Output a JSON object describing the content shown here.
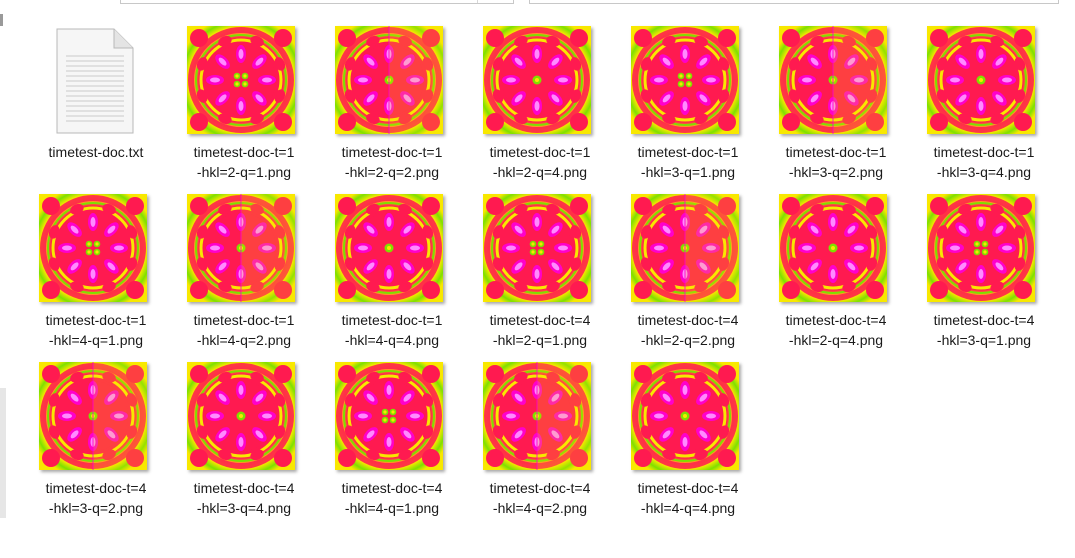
{
  "files": [
    {
      "name": "timetest-doc.txt",
      "type": "text"
    },
    {
      "name": "timetest-doc-t=1\n-hkl=2-q=1.png",
      "type": "image",
      "variant": "quad"
    },
    {
      "name": "timetest-doc-t=1\n-hkl=2-q=2.png",
      "type": "image",
      "variant": "split"
    },
    {
      "name": "timetest-doc-t=1\n-hkl=2-q=4.png",
      "type": "image",
      "variant": "single"
    },
    {
      "name": "timetest-doc-t=1\n-hkl=3-q=1.png",
      "type": "image",
      "variant": "quad"
    },
    {
      "name": "timetest-doc-t=1\n-hkl=3-q=2.png",
      "type": "image",
      "variant": "split"
    },
    {
      "name": "timetest-doc-t=1\n-hkl=3-q=4.png",
      "type": "image",
      "variant": "single"
    },
    {
      "name": "timetest-doc-t=1\n-hkl=4-q=1.png",
      "type": "image",
      "variant": "quad"
    },
    {
      "name": "timetest-doc-t=1\n-hkl=4-q=2.png",
      "type": "image",
      "variant": "split"
    },
    {
      "name": "timetest-doc-t=1\n-hkl=4-q=4.png",
      "type": "image",
      "variant": "single"
    },
    {
      "name": "timetest-doc-t=4\n-hkl=2-q=1.png",
      "type": "image",
      "variant": "quad"
    },
    {
      "name": "timetest-doc-t=4\n-hkl=2-q=2.png",
      "type": "image",
      "variant": "split"
    },
    {
      "name": "timetest-doc-t=4\n-hkl=2-q=4.png",
      "type": "image",
      "variant": "single"
    },
    {
      "name": "timetest-doc-t=4\n-hkl=3-q=1.png",
      "type": "image",
      "variant": "quad"
    },
    {
      "name": "timetest-doc-t=4\n-hkl=3-q=2.png",
      "type": "image",
      "variant": "split"
    },
    {
      "name": "timetest-doc-t=4\n-hkl=3-q=4.png",
      "type": "image",
      "variant": "single"
    },
    {
      "name": "timetest-doc-t=4\n-hkl=4-q=1.png",
      "type": "image",
      "variant": "quad"
    },
    {
      "name": "timetest-doc-t=4\n-hkl=4-q=2.png",
      "type": "image",
      "variant": "split"
    },
    {
      "name": "timetest-doc-t=4\n-hkl=4-q=4.png",
      "type": "image",
      "variant": "single"
    }
  ],
  "colors": {
    "label": "#1a1a1a",
    "heat_red": "#ff1a50",
    "heat_magenta": "#ff00cc",
    "heat_pink": "#ff8cff",
    "heat_yellow": "#f8e800",
    "heat_orange": "#ffa020",
    "heat_green": "#7ee000"
  }
}
